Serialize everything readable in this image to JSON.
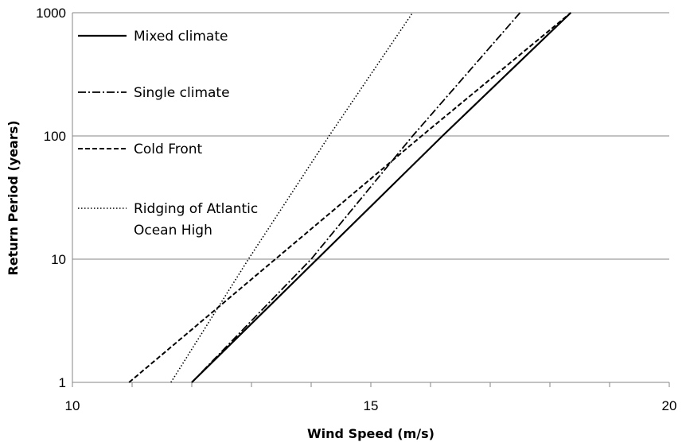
{
  "chart_data": {
    "type": "line",
    "title": "",
    "xlabel": "Wind Speed (m/s)",
    "ylabel": "Return Period (years)",
    "xlim": [
      10,
      20
    ],
    "ylim": [
      1,
      1000
    ],
    "yscale": "log",
    "x_ticks": [
      "10",
      "15",
      "20"
    ],
    "y_ticks": [
      "1",
      "10",
      "100",
      "1000"
    ],
    "grid": "horizontal",
    "legend_position": "top-left",
    "series": [
      {
        "name": "Mixed climate",
        "style": "solid",
        "points": [
          [
            12.0,
            1
          ],
          [
            14.1,
            10
          ],
          [
            16.2,
            100
          ],
          [
            18.35,
            1000
          ]
        ]
      },
      {
        "name": "Single climate",
        "style": "dashdot",
        "points": [
          [
            12.0,
            1
          ],
          [
            14.0,
            10
          ],
          [
            15.7,
            100
          ],
          [
            17.5,
            1000
          ]
        ]
      },
      {
        "name": "Cold Front",
        "style": "dashed",
        "points": [
          [
            10.95,
            1
          ],
          [
            13.4,
            10
          ],
          [
            15.85,
            100
          ],
          [
            18.35,
            1000
          ]
        ]
      },
      {
        "name": "Ridging of Atlantic Ocean High",
        "legend_lines": [
          "Ridging of Atlantic",
          "Ocean High"
        ],
        "style": "dotted",
        "points": [
          [
            11.65,
            1
          ],
          [
            12.95,
            10
          ],
          [
            14.3,
            100
          ],
          [
            15.7,
            1000
          ]
        ]
      }
    ]
  }
}
